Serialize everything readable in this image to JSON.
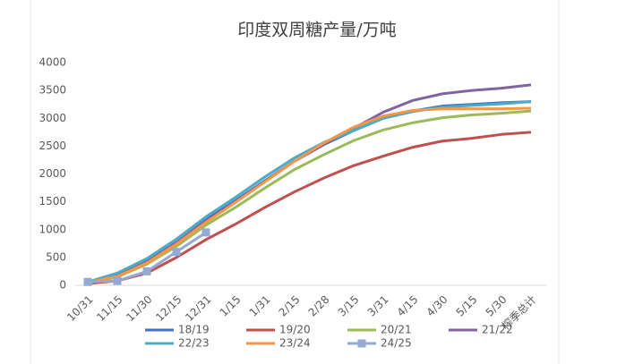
{
  "chart_data": {
    "type": "line",
    "title": "印度双周糖产量/万吨",
    "categories": [
      "10/31",
      "11/15",
      "11/30",
      "12/15",
      "12/31",
      "1/15",
      "1/31",
      "2/15",
      "2/28",
      "3/15",
      "3/31",
      "4/15",
      "4/30",
      "5/15",
      "5/30",
      "榨季总计"
    ],
    "ylim": [
      0,
      4000
    ],
    "yticks": [
      0,
      500,
      1000,
      1500,
      2000,
      2500,
      3000,
      3500,
      4000
    ],
    "grid": false,
    "legend": "bottom",
    "series": [
      {
        "name": "18/19",
        "color": "#4472c4",
        "values": [
          50,
          180,
          420,
          760,
          1180,
          1520,
          1880,
          2230,
          2530,
          2780,
          3000,
          3130,
          3220,
          3250,
          3280,
          3300
        ]
      },
      {
        "name": "19/20",
        "color": "#c0504d",
        "values": [
          30,
          80,
          220,
          500,
          820,
          1100,
          1400,
          1680,
          1930,
          2150,
          2320,
          2480,
          2590,
          2640,
          2710,
          2750
        ]
      },
      {
        "name": "20/21",
        "color": "#9bbb59",
        "values": [
          40,
          150,
          380,
          700,
          1080,
          1400,
          1750,
          2080,
          2350,
          2600,
          2790,
          2920,
          3010,
          3060,
          3090,
          3130
        ]
      },
      {
        "name": "21/22",
        "color": "#8064a2",
        "values": [
          50,
          170,
          430,
          770,
          1160,
          1500,
          1870,
          2230,
          2540,
          2820,
          3110,
          3320,
          3440,
          3500,
          3540,
          3600
        ]
      },
      {
        "name": "22/23",
        "color": "#4bacc6",
        "values": [
          60,
          220,
          480,
          830,
          1230,
          1580,
          1950,
          2290,
          2570,
          2780,
          3000,
          3120,
          3200,
          3230,
          3260,
          3300
        ]
      },
      {
        "name": "23/24",
        "color": "#f79646",
        "values": [
          50,
          160,
          400,
          740,
          1130,
          1490,
          1860,
          2230,
          2560,
          2840,
          3040,
          3140,
          3170,
          3170,
          3170,
          3180
        ]
      },
      {
        "name": "24/25",
        "color": "#95a9d5",
        "marker": "square",
        "values": [
          60,
          80,
          250,
          600,
          950,
          null,
          null,
          null,
          null,
          null,
          null,
          null,
          null,
          null,
          null,
          null
        ]
      }
    ]
  }
}
